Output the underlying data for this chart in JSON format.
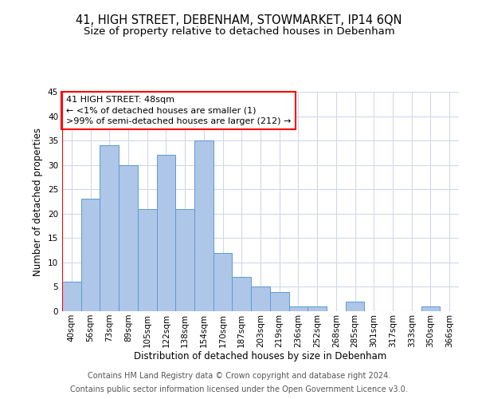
{
  "title_line1": "41, HIGH STREET, DEBENHAM, STOWMARKET, IP14 6QN",
  "title_line2": "Size of property relative to detached houses in Debenham",
  "xlabel": "Distribution of detached houses by size in Debenham",
  "ylabel": "Number of detached properties",
  "categories": [
    "40sqm",
    "56sqm",
    "73sqm",
    "89sqm",
    "105sqm",
    "122sqm",
    "138sqm",
    "154sqm",
    "170sqm",
    "187sqm",
    "203sqm",
    "219sqm",
    "236sqm",
    "252sqm",
    "268sqm",
    "285sqm",
    "301sqm",
    "317sqm",
    "333sqm",
    "350sqm",
    "366sqm"
  ],
  "values": [
    6,
    23,
    34,
    30,
    21,
    32,
    21,
    35,
    12,
    7,
    5,
    4,
    1,
    1,
    0,
    2,
    0,
    0,
    0,
    1,
    0
  ],
  "bar_color": "#aec6e8",
  "bar_edge_color": "#5b9bd5",
  "ylim": [
    0,
    45
  ],
  "yticks": [
    0,
    5,
    10,
    15,
    20,
    25,
    30,
    35,
    40,
    45
  ],
  "annotation_box_text": "41 HIGH STREET: 48sqm\n← <1% of detached houses are smaller (1)\n>99% of semi-detached houses are larger (212) →",
  "footer_line1": "Contains HM Land Registry data © Crown copyright and database right 2024.",
  "footer_line2": "Contains public sector information licensed under the Open Government Licence v3.0.",
  "background_color": "#ffffff",
  "grid_color": "#d0d8e8",
  "title_fontsize": 10.5,
  "subtitle_fontsize": 9.5,
  "axis_label_fontsize": 8.5,
  "tick_fontsize": 7.5,
  "footer_fontsize": 7,
  "annotation_fontsize": 8
}
